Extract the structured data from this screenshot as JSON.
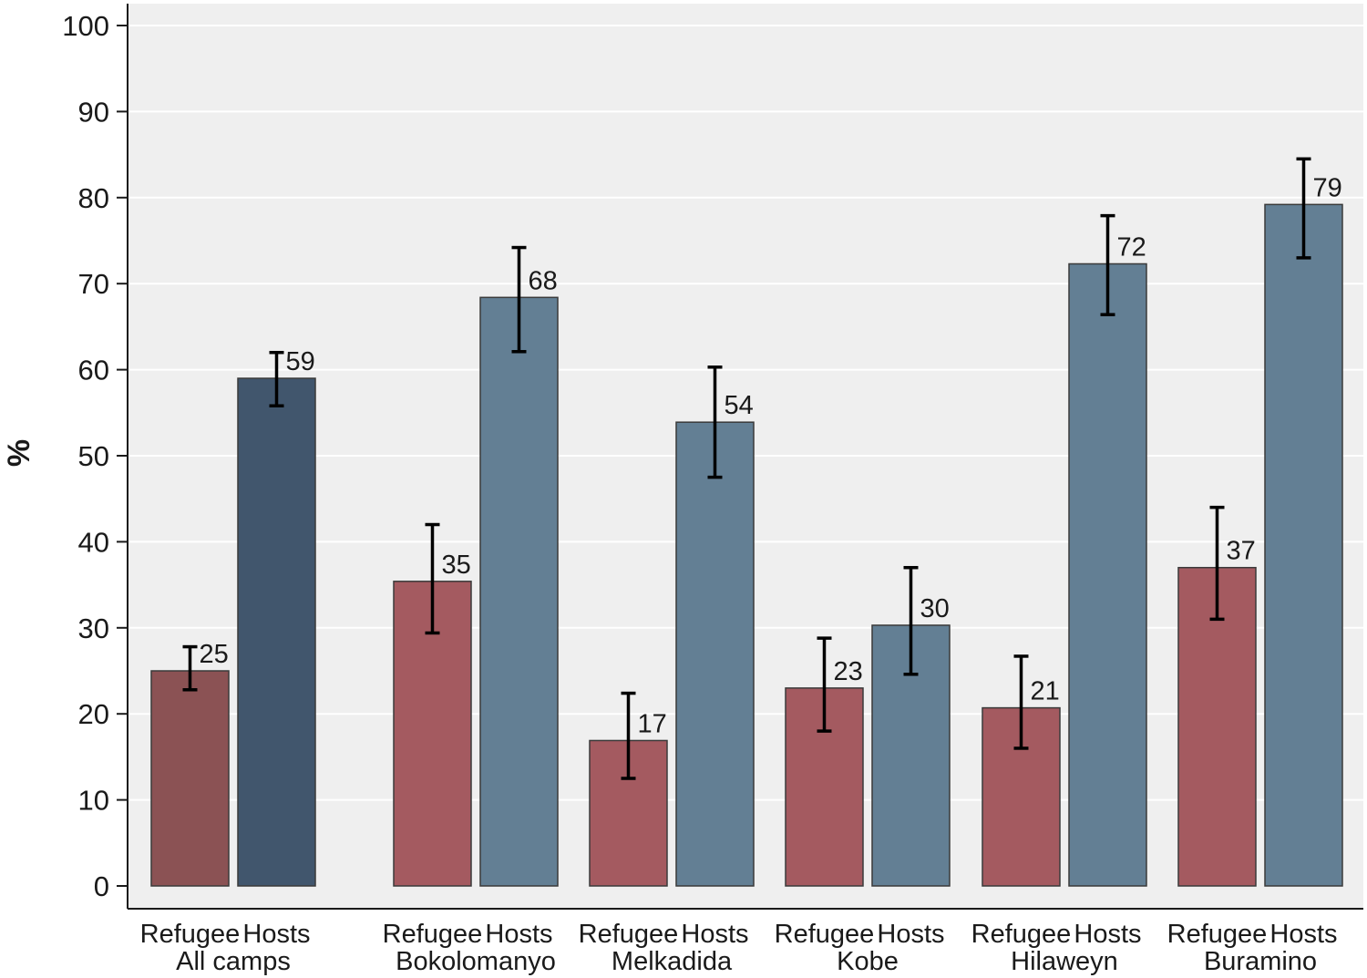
{
  "chart_data": {
    "type": "bar",
    "title": "",
    "xlabel": "",
    "ylabel": "%",
    "ylim": [
      0,
      100
    ],
    "yticks": [
      0,
      10,
      20,
      30,
      40,
      50,
      60,
      70,
      80,
      90,
      100
    ],
    "grid": true,
    "groups": [
      {
        "name": "All camps",
        "bars": [
          {
            "label": "Refugee",
            "value": 25,
            "ci": [
              22.8,
              27.8
            ],
            "value_label": "25",
            "color": "#8b5254"
          },
          {
            "label": "Hosts",
            "value": 59,
            "ci": [
              55.8,
              62.0
            ],
            "value_label": "59",
            "color": "#41566d"
          }
        ]
      },
      {
        "name": "Bokolomanyo",
        "bars": [
          {
            "label": "Refugee",
            "value": 35.4,
            "ci": [
              29.4,
              42.0
            ],
            "value_label": "35",
            "color": "#a45a60"
          },
          {
            "label": "Hosts",
            "value": 68.4,
            "ci": [
              62.1,
              74.2
            ],
            "value_label": "68",
            "color": "#637f94"
          }
        ]
      },
      {
        "name": "Melkadida",
        "bars": [
          {
            "label": "Refugee",
            "value": 16.9,
            "ci": [
              12.5,
              22.4
            ],
            "value_label": "17",
            "color": "#a45a60"
          },
          {
            "label": "Hosts",
            "value": 53.9,
            "ci": [
              47.5,
              60.3
            ],
            "value_label": "54",
            "color": "#637f94"
          }
        ]
      },
      {
        "name": "Kobe",
        "bars": [
          {
            "label": "Refugee",
            "value": 23.0,
            "ci": [
              18.0,
              28.8
            ],
            "value_label": "23",
            "color": "#a45a60"
          },
          {
            "label": "Hosts",
            "value": 30.3,
            "ci": [
              24.6,
              37.0
            ],
            "value_label": "30",
            "color": "#637f94"
          }
        ]
      },
      {
        "name": "Hilaweyn",
        "bars": [
          {
            "label": "Refugee",
            "value": 20.7,
            "ci": [
              16.0,
              26.7
            ],
            "value_label": "21",
            "color": "#a45a60"
          },
          {
            "label": "Hosts",
            "value": 72.3,
            "ci": [
              66.4,
              77.9
            ],
            "value_label": "72",
            "color": "#637f94"
          }
        ]
      },
      {
        "name": "Buramino",
        "bars": [
          {
            "label": "Refugee",
            "value": 37.0,
            "ci": [
              31.0,
              44.0
            ],
            "value_label": "37",
            "color": "#a45a60"
          },
          {
            "label": "Hosts",
            "value": 79.2,
            "ci": [
              73.0,
              84.5
            ],
            "value_label": "79",
            "color": "#637f94"
          }
        ]
      }
    ],
    "colors": {
      "plot_background": "#efefef",
      "gridline": "#ffffff",
      "axis": "#1a1a1a"
    }
  }
}
